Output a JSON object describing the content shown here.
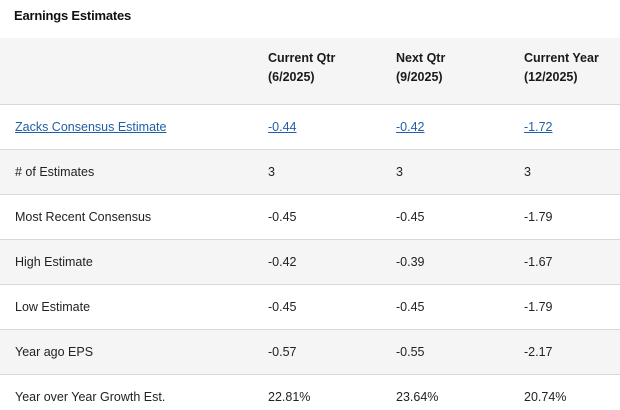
{
  "title": "Earnings Estimates",
  "header": {
    "col0": "",
    "col1_line1": "Current Qtr",
    "col1_line2": "(6/2025)",
    "col2_line1": "Next Qtr",
    "col2_line2": "(9/2025)",
    "col3_line1": "Current Year",
    "col3_line2": "(12/2025)"
  },
  "rows": [
    {
      "label": "Zacks Consensus Estimate",
      "v1": "-0.44",
      "v2": "-0.42",
      "v3": "-1.72"
    },
    {
      "label": "# of Estimates",
      "v1": "3",
      "v2": "3",
      "v3": "3"
    },
    {
      "label": "Most Recent Consensus",
      "v1": "-0.45",
      "v2": "-0.45",
      "v3": "-1.79"
    },
    {
      "label": "High Estimate",
      "v1": "-0.42",
      "v2": "-0.39",
      "v3": "-1.67"
    },
    {
      "label": "Low Estimate",
      "v1": "-0.45",
      "v2": "-0.45",
      "v3": "-1.79"
    },
    {
      "label": "Year ago EPS",
      "v1": "-0.57",
      "v2": "-0.55",
      "v3": "-2.17"
    },
    {
      "label": "Year over Year Growth Est.",
      "v1": "22.81%",
      "v2": "23.64%",
      "v3": "20.74%"
    }
  ],
  "colors": {
    "link": "#1f5fa8",
    "stripe": "#f5f5f5",
    "border": "#d8d8d8"
  }
}
